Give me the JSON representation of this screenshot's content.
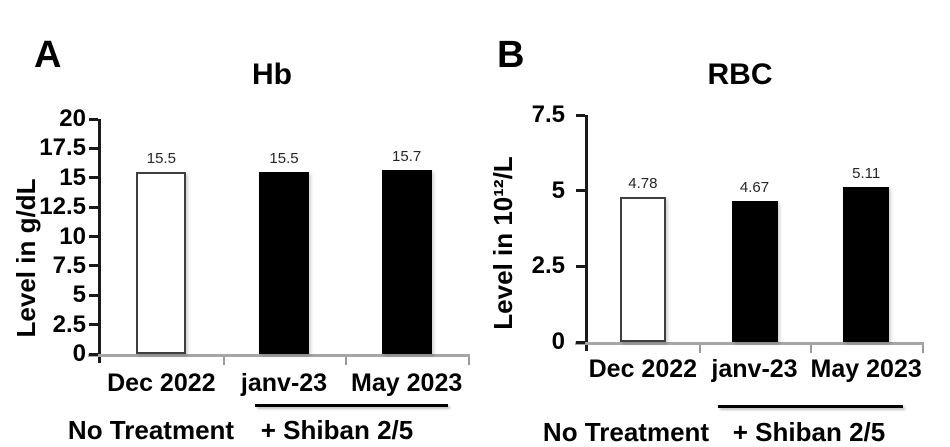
{
  "figure_caption": "",
  "colors": {
    "background": "#ffffff",
    "x_axis": "#a6a6a6",
    "y_axis": "#1a1a1a",
    "x_tick": "#9a9a9a",
    "text": "#000000",
    "value_label_text": "#262626",
    "bar_white_fill": "#ffffff",
    "bar_white_border": "#3f3f3f",
    "bar_black": "#000000"
  },
  "chart_data": [
    {
      "type": "bar",
      "panel": "A",
      "title": "Hb",
      "xlabel": "",
      "ylabel": "Level in g/dL",
      "ylim": [
        0,
        20
      ],
      "yticks": [
        0,
        2.5,
        5,
        7.5,
        10,
        12.5,
        15,
        17.5,
        20
      ],
      "grid": false,
      "legend": "none",
      "categories": [
        "Dec 2022",
        "janv-23",
        "May 2023"
      ],
      "values": [
        15.5,
        15.5,
        15.7
      ],
      "data_labels": [
        "15.5",
        "15.5",
        "15.7"
      ],
      "bar_fills": [
        "#ffffff",
        "#000000",
        "#000000"
      ],
      "bar_border_colors": [
        "#3f3f3f",
        "#000000",
        "#000000"
      ],
      "group_annotations": [
        {
          "label": "No Treatment",
          "categories": [
            0
          ],
          "underline": false
        },
        {
          "label": "+ Shiban 2/5",
          "categories": [
            1,
            2
          ],
          "underline": true
        }
      ]
    },
    {
      "type": "bar",
      "panel": "B",
      "title": "RBC",
      "xlabel": "",
      "ylabel": "Level in 10¹²/L",
      "ylim": [
        0,
        7.5
      ],
      "yticks": [
        0,
        2.5,
        5,
        7.5
      ],
      "grid": false,
      "legend": "none",
      "categories": [
        "Dec 2022",
        "janv-23",
        "May 2023"
      ],
      "values": [
        4.78,
        4.67,
        5.11
      ],
      "data_labels": [
        "4.78",
        "4.67",
        "5.11"
      ],
      "bar_fills": [
        "#ffffff",
        "#000000",
        "#000000"
      ],
      "bar_border_colors": [
        "#3f3f3f",
        "#000000",
        "#000000"
      ],
      "group_annotations": [
        {
          "label": "No Treatment",
          "categories": [
            0
          ],
          "underline": false
        },
        {
          "label": "+ Shiban 2/5",
          "categories": [
            1,
            2
          ],
          "underline": true
        }
      ]
    }
  ]
}
